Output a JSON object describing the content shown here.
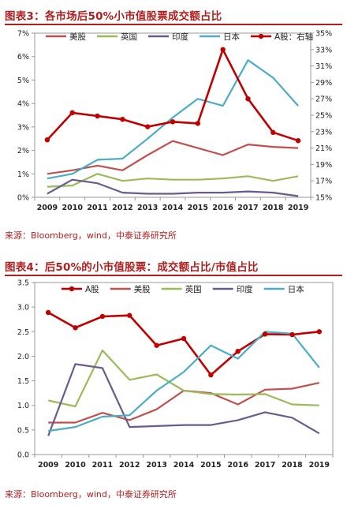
{
  "chart_data": [
    {
      "type": "line",
      "title": "图表3：各市场后50%小市值股票成交额占比",
      "source": "来源：Bloomberg，wind，中泰证券研究所",
      "categories": [
        "2009",
        "2010",
        "2011",
        "2012",
        "2013",
        "2014",
        "2015",
        "2016",
        "2017",
        "2018",
        "2019"
      ],
      "y_left": {
        "ticks": [
          "0%",
          "1%",
          "2%",
          "3%",
          "4%",
          "5%",
          "6%",
          "7%"
        ],
        "min": 0,
        "max": 7
      },
      "y_right": {
        "ticks": [
          "15%",
          "17%",
          "19%",
          "21%",
          "23%",
          "25%",
          "27%",
          "29%",
          "31%",
          "33%",
          "35%"
        ],
        "min": 15,
        "max": 35
      },
      "legend_position": "top",
      "series": [
        {
          "name": "美股",
          "axis": "left",
          "color": "#c0504d",
          "marker": false,
          "values": [
            1.0,
            1.15,
            1.35,
            1.15,
            1.8,
            2.4,
            2.1,
            1.8,
            2.25,
            2.15,
            2.1
          ]
        },
        {
          "name": "英国",
          "axis": "left",
          "color": "#9bbb59",
          "marker": false,
          "values": [
            0.45,
            0.5,
            1.0,
            0.7,
            0.8,
            0.75,
            0.75,
            0.8,
            0.9,
            0.7,
            0.9
          ]
        },
        {
          "name": "印度",
          "axis": "left",
          "color": "#6a5a8e",
          "marker": false,
          "values": [
            0.15,
            0.75,
            0.6,
            0.2,
            0.15,
            0.15,
            0.2,
            0.2,
            0.25,
            0.2,
            0.05
          ]
        },
        {
          "name": "日本",
          "axis": "left",
          "color": "#4bacc6",
          "marker": false,
          "values": [
            0.8,
            1.0,
            1.6,
            1.65,
            2.5,
            3.4,
            4.2,
            3.9,
            5.85,
            5.1,
            3.9
          ]
        },
        {
          "name": "A股：右轴",
          "axis": "right",
          "color": "#c00000",
          "marker": true,
          "values": [
            22.0,
            25.3,
            24.9,
            24.5,
            23.6,
            24.2,
            24.0,
            33.0,
            27.0,
            22.9,
            21.9
          ]
        }
      ]
    },
    {
      "type": "line",
      "title": "图表4：后50%的小市值股票：成交额占比/市值占比",
      "source": "来源：Bloomberg，wind，中泰证券研究所",
      "categories": [
        "2009",
        "2010",
        "2011",
        "2012",
        "2013",
        "2014",
        "2015",
        "2016",
        "2017",
        "2018",
        "2019"
      ],
      "y_left": {
        "ticks": [
          "0.0",
          "0.5",
          "1.0",
          "1.5",
          "2.0",
          "2.5",
          "3.0",
          "3.5"
        ],
        "min": 0,
        "max": 3.5
      },
      "legend_position": "top",
      "series": [
        {
          "name": "A股",
          "color": "#c00000",
          "marker": true,
          "values": [
            2.89,
            2.58,
            2.81,
            2.83,
            2.22,
            2.36,
            1.62,
            2.1,
            2.45,
            2.44,
            2.5
          ]
        },
        {
          "name": "美股",
          "color": "#c0504d",
          "marker": false,
          "values": [
            0.65,
            0.65,
            0.85,
            0.7,
            0.92,
            1.3,
            1.25,
            1.02,
            1.32,
            1.34,
            1.46
          ]
        },
        {
          "name": "英国",
          "color": "#9bbb59",
          "marker": false,
          "values": [
            1.1,
            0.98,
            2.12,
            1.52,
            1.63,
            1.3,
            1.23,
            1.22,
            1.23,
            1.02,
            1.0
          ]
        },
        {
          "name": "印度",
          "color": "#6a5a8e",
          "marker": false,
          "values": [
            0.38,
            1.84,
            1.76,
            0.56,
            0.58,
            0.6,
            0.6,
            0.7,
            0.86,
            0.75,
            0.43
          ]
        },
        {
          "name": "日本",
          "color": "#4bacc6",
          "marker": false,
          "values": [
            0.48,
            0.56,
            0.77,
            0.8,
            1.3,
            1.68,
            2.22,
            1.95,
            2.5,
            2.46,
            1.77
          ]
        }
      ]
    }
  ]
}
